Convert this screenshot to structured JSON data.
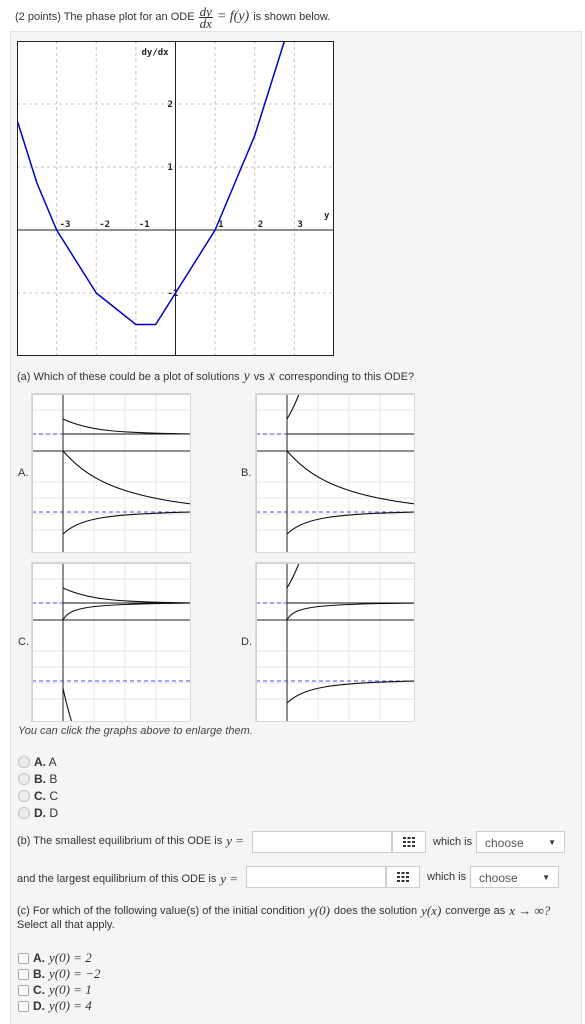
{
  "header": {
    "prefix": "(2 points) The phase plot for an ODE",
    "frac_num": "dy",
    "frac_den": "dx",
    "eq_rhs": "= f(y)",
    "suffix": "is shown below."
  },
  "chart_data": {
    "type": "line",
    "title": "",
    "ylabel": "dy/dx",
    "xlabel": "y",
    "xlim": [
      -4,
      4
    ],
    "ylim": [
      -2,
      3
    ],
    "xticks": [
      -3,
      -2,
      -1,
      1,
      2,
      3
    ],
    "yticks": [
      -1,
      1,
      2
    ],
    "grid": true,
    "series": [
      {
        "x": [
          -4.0,
          -3.5,
          -3.0,
          -2.5,
          -2.0,
          -1.5,
          -1.0,
          -0.5,
          0.0,
          0.5,
          1.0,
          1.5,
          2.0,
          2.5,
          3.0
        ],
        "y": [
          1.75,
          0.75,
          0.0,
          -0.5,
          -1.0,
          -1.25,
          -1.5,
          -1.5,
          -1.0,
          -0.5,
          0.0,
          0.75,
          1.5,
          2.5,
          3.5
        ]
      }
    ],
    "color": "#0000cc"
  },
  "part_a": {
    "question_pre": "(a) Which of these could be a plot of solutions",
    "var_y": "y",
    "vs": "vs",
    "var_x": "x",
    "question_post": "corresponding to this ODE?",
    "graph_labels": [
      "A.",
      "B.",
      "C.",
      "D."
    ],
    "hint": "You can click the graphs above to enlarge them.",
    "options": [
      {
        "letter": "A.",
        "text": "A"
      },
      {
        "letter": "B.",
        "text": "B"
      },
      {
        "letter": "C.",
        "text": "C"
      },
      {
        "letter": "D.",
        "text": "D"
      }
    ]
  },
  "part_b": {
    "smallest_text": "(b) The smallest equilibrium of this ODE is",
    "largest_text": "and the largest equilibrium of this ODE is",
    "eq": "y =",
    "which_is": "which is",
    "select_value": "choose"
  },
  "part_c": {
    "question_pre": "(c) For which of the following value(s) of the initial condition",
    "ic": "y(0)",
    "question_mid": "does the solution",
    "sol": "y(x)",
    "question_mid2": "converge as",
    "limit": "x → ∞?",
    "select_all": "Select all that apply.",
    "options": [
      {
        "letter": "A.",
        "expr": "y(0) = 2"
      },
      {
        "letter": "B.",
        "expr": "y(0) = −2"
      },
      {
        "letter": "C.",
        "expr": "y(0) = 1"
      },
      {
        "letter": "D.",
        "expr": "y(0) = 4"
      }
    ]
  }
}
